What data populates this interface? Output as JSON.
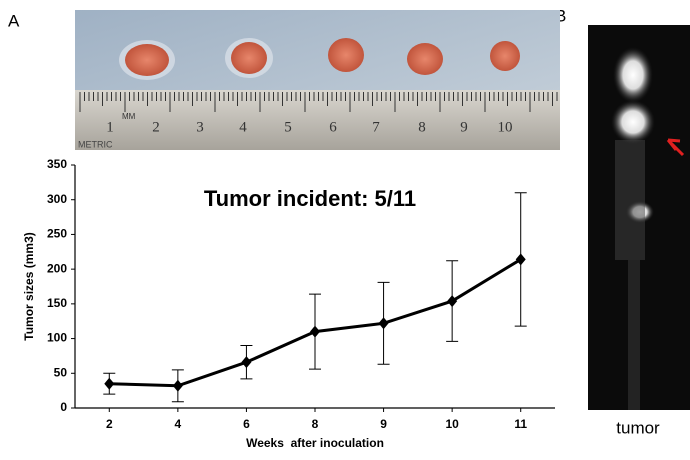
{
  "panel_labels": {
    "a": "A",
    "b": "B"
  },
  "photo_a": {
    "ruler_numbers": [
      "1",
      "2",
      "3",
      "4",
      "5",
      "6",
      "7",
      "8",
      "9",
      "10"
    ],
    "ruler_unit": "MM",
    "ruler_brand": "METRIC"
  },
  "photo_b": {
    "caption": "tumor"
  },
  "chart_data": {
    "type": "line",
    "annotation": "Tumor incident: 5/11",
    "x_label": "Weeks  after inoculation",
    "y_label": "Tumor sizes (mm3)",
    "categories": [
      "2",
      "4",
      "6",
      "8",
      "9",
      "10",
      "11"
    ],
    "series": [
      {
        "color": "#000000",
        "values": [
          35,
          32,
          66,
          110,
          122,
          154,
          214
        ],
        "errors": [
          15,
          23,
          24,
          54,
          59,
          58,
          96
        ]
      }
    ],
    "ylim": [
      0,
      350
    ],
    "yticks": [
      0,
      50,
      100,
      150,
      200,
      250,
      300,
      350
    ]
  }
}
